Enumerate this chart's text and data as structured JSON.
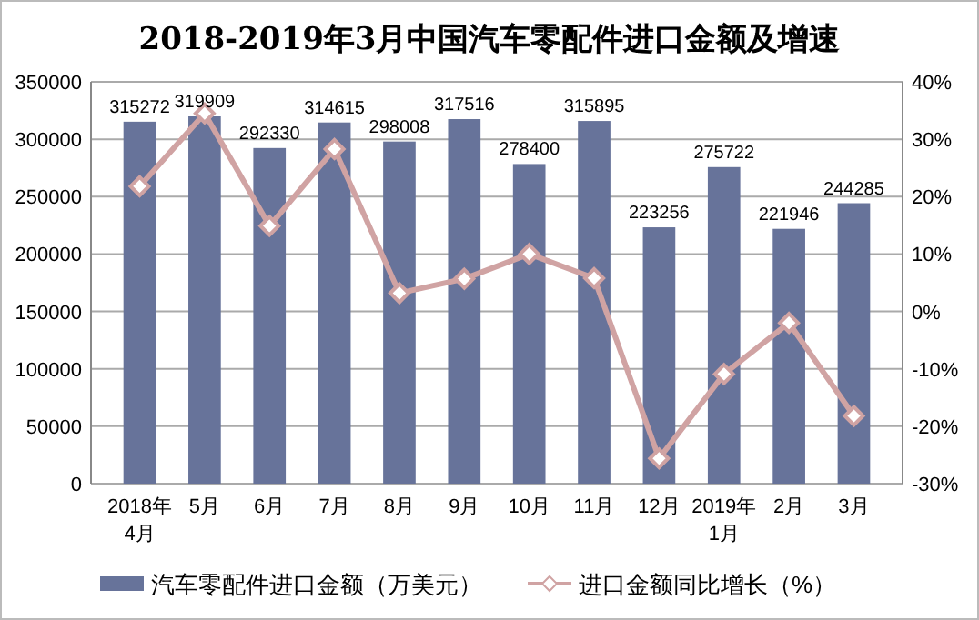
{
  "chart_data": {
    "type": "bar",
    "title": "2018-2019年3月中国汽车零配件进口金额及增速",
    "categories": [
      "2018年\n4月",
      "5月",
      "6月",
      "7月",
      "8月",
      "9月",
      "10月",
      "11月",
      "12月",
      "2019年\n1月",
      "2月",
      "3月"
    ],
    "series": [
      {
        "name": "汽车零配件进口金额（万美元）",
        "color": "#67739a",
        "values": [
          315272,
          319909,
          292330,
          314615,
          298008,
          317516,
          278400,
          315895,
          223256,
          275722,
          221946,
          244285
        ],
        "value_labels": [
          "315272",
          "319909",
          "292330",
          "314615",
          "298008",
          "317516",
          "278400",
          "315895",
          "223256",
          "275722",
          "221946",
          "244285"
        ]
      },
      {
        "name": "进口金额同比增长（%）",
        "type": "line",
        "axis": "y2",
        "color": "#d0a3a3",
        "marker": "diamond",
        "values": [
          21.8,
          34.5,
          14.9,
          28.3,
          3.2,
          5.7,
          10,
          5.8,
          -25.6,
          -10.9,
          -2,
          -18.2
        ]
      }
    ],
    "ylim": [
      0,
      350000
    ],
    "yticks": [
      0,
      50000,
      100000,
      150000,
      200000,
      250000,
      300000,
      350000
    ],
    "y2lim": [
      -30,
      40
    ],
    "y2ticks": [
      {
        "value": -30,
        "label": "-30%"
      },
      {
        "value": -20,
        "label": "-20%"
      },
      {
        "value": -10,
        "label": "-10%"
      },
      {
        "value": 0,
        "label": "0%"
      },
      {
        "value": 10,
        "label": "10%"
      },
      {
        "value": 20,
        "label": "20%"
      },
      {
        "value": 30,
        "label": "30%"
      },
      {
        "value": 40,
        "label": "40%"
      }
    ],
    "grid": "y",
    "legend": "bottom"
  }
}
